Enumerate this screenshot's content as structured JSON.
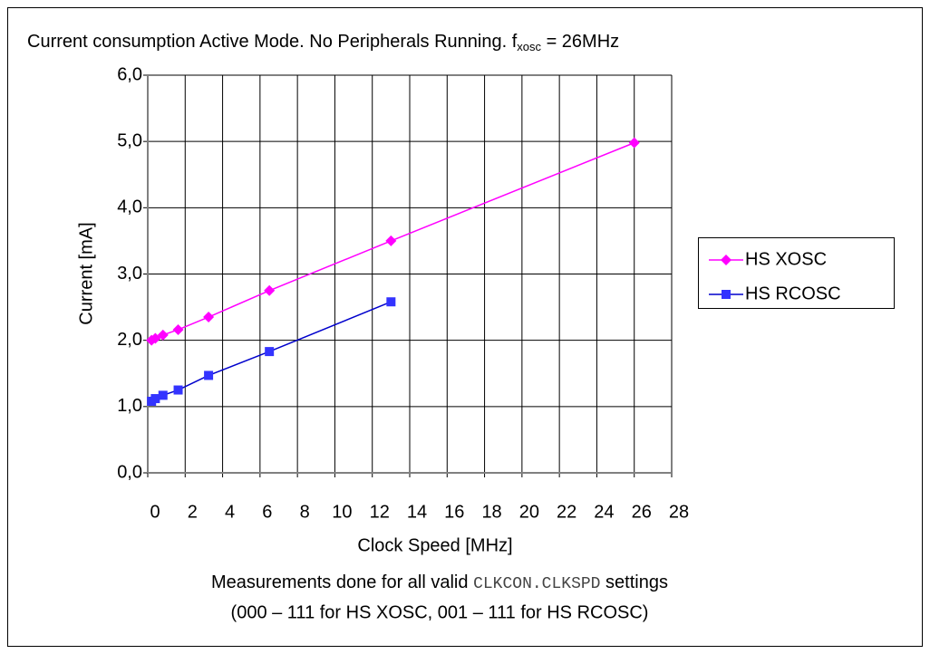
{
  "chart_data": {
    "type": "line",
    "title_parts": [
      "Current consumption Active Mode. No Peripherals Running. f",
      "xosc",
      " = 26MHz"
    ],
    "xlabel": "Clock Speed [MHz]",
    "ylabel": "Current [mA]",
    "series": [
      {
        "name": "HS XOSC",
        "color": "#ff00ff",
        "marker": "diamond",
        "x": [
          0.203125,
          0.40625,
          0.8125,
          1.625,
          3.25,
          6.5,
          13,
          26
        ],
        "values": [
          2.0,
          2.03,
          2.08,
          2.16,
          2.35,
          2.75,
          3.5,
          4.98
        ]
      },
      {
        "name": "HS RCOSC",
        "color": "#3333ff",
        "line_color": "#0000cc",
        "marker": "square",
        "x": [
          0.203125,
          0.40625,
          0.8125,
          1.625,
          3.25,
          6.5,
          13
        ],
        "values": [
          1.08,
          1.12,
          1.17,
          1.25,
          1.47,
          1.83,
          2.58
        ]
      }
    ],
    "xlim": [
      0,
      28
    ],
    "xticks": [
      0,
      2,
      4,
      6,
      8,
      10,
      12,
      14,
      16,
      18,
      20,
      22,
      24,
      26,
      28
    ],
    "ylim": [
      0,
      6
    ],
    "yticks": [
      {
        "value": 0,
        "label": "0,0"
      },
      {
        "value": 1,
        "label": "1,0"
      },
      {
        "value": 2,
        "label": "2,0"
      },
      {
        "value": 3,
        "label": "3,0"
      },
      {
        "value": 4,
        "label": "4,0"
      },
      {
        "value": 5,
        "label": "5,0"
      },
      {
        "value": 6,
        "label": "6,0"
      }
    ],
    "grid": true,
    "legend": "right",
    "notes": [
      [
        "Measurements done for all valid ",
        "CLKCON.CLKSPD",
        " settings"
      ],
      [
        "(000 – 111 for HS XOSC, 001 – 111 for HS RCOSC)"
      ]
    ]
  }
}
